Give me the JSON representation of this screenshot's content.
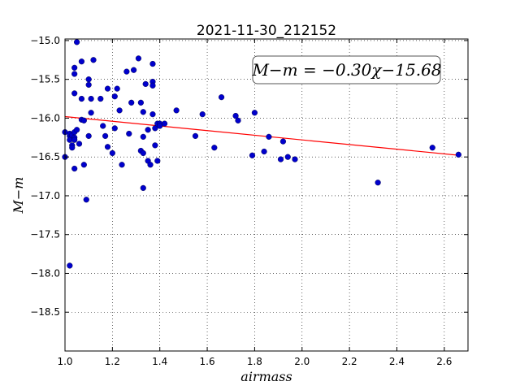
{
  "chart_data": {
    "type": "scatter",
    "title": "2021-11-30_212152",
    "xlabel": "airmass",
    "ylabel": "M−m",
    "xlim": [
      1.0,
      2.7
    ],
    "ylim": [
      -14.98,
      -19.0
    ],
    "y_inverted": true,
    "grid": true,
    "x_ticks": [
      1.0,
      1.2,
      1.4,
      1.6,
      1.8,
      2.0,
      2.2,
      2.4,
      2.6
    ],
    "x_tick_labels": [
      "1.0",
      "1.2",
      "1.4",
      "1.6",
      "1.8",
      "2.0",
      "2.2",
      "2.4",
      "2.6"
    ],
    "y_ticks": [
      -15.0,
      -15.5,
      -16.0,
      -16.5,
      -17.0,
      -17.5,
      -18.0,
      -18.5
    ],
    "y_tick_labels": [
      "−15.0",
      "−15.5",
      "−16.0",
      "−16.5",
      "−17.0",
      "−17.5",
      "−18.0",
      "−18.5"
    ],
    "annotation": "M−m = −0.30χ−15.68",
    "fit": {
      "slope": -0.3,
      "intercept": -15.68,
      "x_range": [
        1.0,
        2.67
      ],
      "color": "#ff0000"
    },
    "point_color": "#0000cc",
    "points": [
      [
        1.0,
        -16.5
      ],
      [
        1.0,
        -16.18
      ],
      [
        1.02,
        -16.23
      ],
      [
        1.02,
        -16.2
      ],
      [
        1.02,
        -16.28
      ],
      [
        1.03,
        -16.35
      ],
      [
        1.03,
        -16.38
      ],
      [
        1.03,
        -16.22
      ],
      [
        1.04,
        -16.25
      ],
      [
        1.04,
        -16.18
      ],
      [
        1.04,
        -16.28
      ],
      [
        1.04,
        -15.43
      ],
      [
        1.04,
        -15.35
      ],
      [
        1.04,
        -15.68
      ],
      [
        1.04,
        -16.65
      ],
      [
        1.05,
        -15.02
      ],
      [
        1.05,
        -16.15
      ],
      [
        1.06,
        -16.33
      ],
      [
        1.07,
        -15.27
      ],
      [
        1.07,
        -16.02
      ],
      [
        1.07,
        -15.75
      ],
      [
        1.08,
        -16.6
      ],
      [
        1.08,
        -16.03
      ],
      [
        1.09,
        -17.05
      ],
      [
        1.1,
        -15.5
      ],
      [
        1.1,
        -15.57
      ],
      [
        1.1,
        -16.23
      ],
      [
        1.11,
        -15.93
      ],
      [
        1.11,
        -15.75
      ],
      [
        1.12,
        -15.25
      ],
      [
        1.02,
        -17.9
      ],
      [
        1.15,
        -15.75
      ],
      [
        1.16,
        -16.1
      ],
      [
        1.17,
        -16.23
      ],
      [
        1.18,
        -15.62
      ],
      [
        1.18,
        -16.37
      ],
      [
        1.2,
        -16.45
      ],
      [
        1.21,
        -16.13
      ],
      [
        1.21,
        -15.72
      ],
      [
        1.22,
        -15.62
      ],
      [
        1.23,
        -15.9
      ],
      [
        1.24,
        -16.6
      ],
      [
        1.26,
        -15.4
      ],
      [
        1.27,
        -16.2
      ],
      [
        1.28,
        -15.8
      ],
      [
        1.29,
        -15.38
      ],
      [
        1.31,
        -15.23
      ],
      [
        1.32,
        -15.8
      ],
      [
        1.32,
        -16.42
      ],
      [
        1.33,
        -16.45
      ],
      [
        1.33,
        -16.24
      ],
      [
        1.33,
        -16.9
      ],
      [
        1.33,
        -15.92
      ],
      [
        1.34,
        -15.56
      ],
      [
        1.35,
        -16.15
      ],
      [
        1.35,
        -16.55
      ],
      [
        1.36,
        -16.6
      ],
      [
        1.37,
        -15.53
      ],
      [
        1.37,
        -15.58
      ],
      [
        1.37,
        -15.3
      ],
      [
        1.37,
        -15.95
      ],
      [
        1.38,
        -16.35
      ],
      [
        1.38,
        -16.13
      ],
      [
        1.39,
        -16.55
      ],
      [
        1.39,
        -16.07
      ],
      [
        1.4,
        -16.07
      ],
      [
        1.4,
        -16.1
      ],
      [
        1.42,
        -16.07
      ],
      [
        1.47,
        -15.9
      ],
      [
        1.55,
        -16.23
      ],
      [
        1.58,
        -15.95
      ],
      [
        1.63,
        -16.38
      ],
      [
        1.66,
        -15.73
      ],
      [
        1.72,
        -15.97
      ],
      [
        1.73,
        -16.03
      ],
      [
        1.79,
        -16.48
      ],
      [
        1.8,
        -15.93
      ],
      [
        1.84,
        -16.43
      ],
      [
        1.86,
        -16.24
      ],
      [
        1.91,
        -16.53
      ],
      [
        1.92,
        -16.3
      ],
      [
        1.94,
        -16.5
      ],
      [
        1.97,
        -16.53
      ],
      [
        2.32,
        -16.83
      ],
      [
        2.55,
        -16.38
      ],
      [
        2.66,
        -16.47
      ]
    ]
  }
}
